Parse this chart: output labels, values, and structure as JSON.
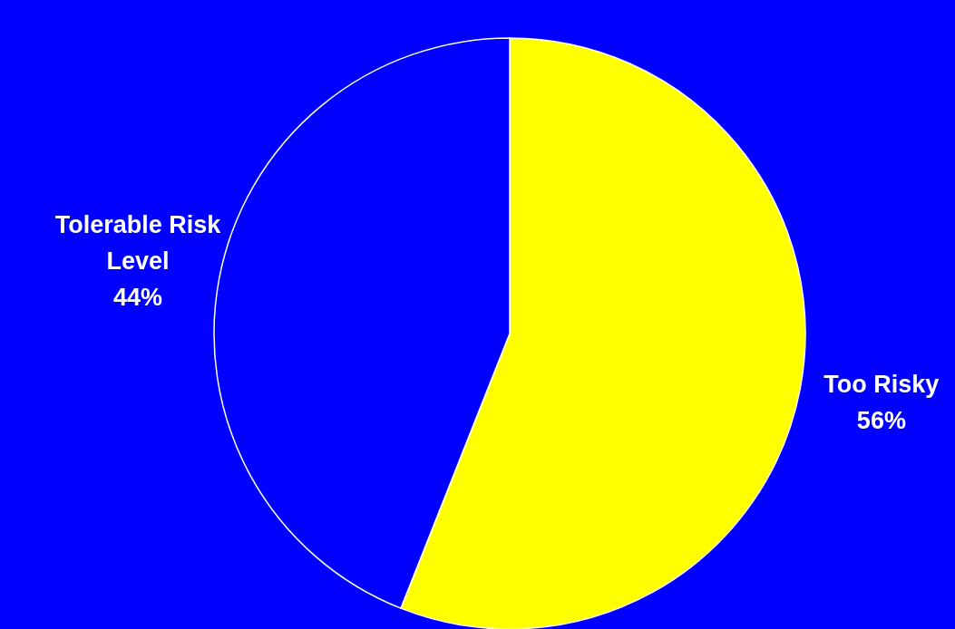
{
  "chart_data": {
    "type": "pie",
    "categories": [
      "Too Risky",
      "Tolerable Risk Level"
    ],
    "values": [
      56,
      44
    ],
    "colors": [
      "#ffff00",
      "#0000ff"
    ],
    "value_labels": [
      "56%",
      "44%"
    ]
  }
}
